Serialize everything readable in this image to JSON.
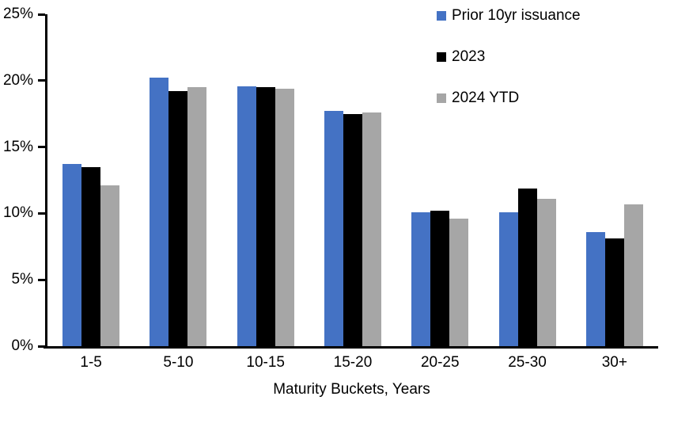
{
  "chart_data": {
    "type": "bar",
    "title": "",
    "xlabel": "Maturity Buckets, Years",
    "ylabel": "",
    "categories": [
      "1-5",
      "5-10",
      "10-15",
      "15-20",
      "20-25",
      "25-30",
      "30+"
    ],
    "series": [
      {
        "name": "Prior 10yr issuance",
        "color": "#4472C4",
        "values": [
          13.7,
          20.2,
          19.6,
          17.7,
          10.1,
          10.1,
          8.6
        ]
      },
      {
        "name": "2023",
        "color": "#000000",
        "values": [
          13.5,
          19.2,
          19.5,
          17.5,
          10.2,
          11.9,
          8.1
        ]
      },
      {
        "name": "2024 YTD",
        "color": "#A6A6A6",
        "values": [
          12.1,
          19.5,
          19.4,
          17.6,
          9.6,
          11.1,
          10.7
        ]
      }
    ],
    "ylim": [
      0,
      25
    ],
    "ytick_step": 5,
    "ytick_labels": [
      "0%",
      "5%",
      "10%",
      "15%",
      "20%",
      "25%"
    ],
    "value_suffix": "%",
    "legend_position": "top-right",
    "grid": false,
    "axis_color": "#000000",
    "background_color": "#FFFFFF"
  }
}
